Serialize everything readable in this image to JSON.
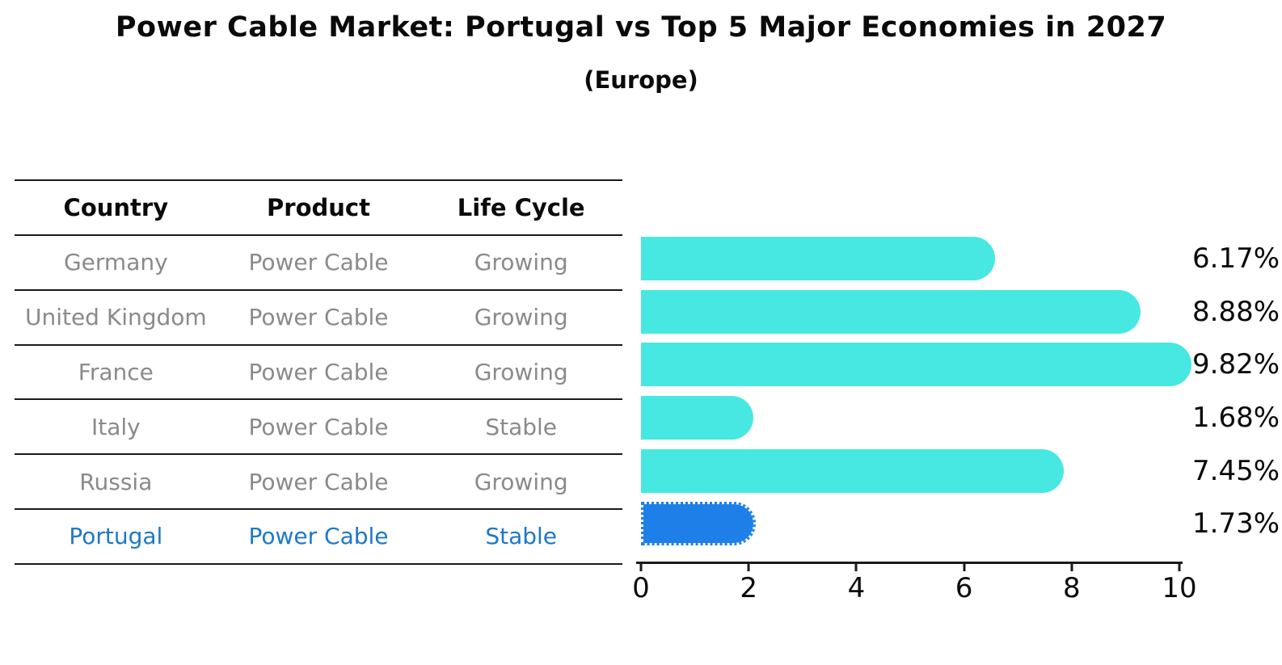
{
  "title": "Power Cable Market: Portugal vs Top 5 Major Economies in 2027",
  "subtitle": "(Europe)",
  "table": {
    "headers": [
      "Country",
      "Product",
      "Life Cycle"
    ],
    "rows": [
      {
        "country": "Germany",
        "product": "Power Cable",
        "life_cycle": "Growing",
        "highlighted": false
      },
      {
        "country": "United Kingdom",
        "product": "Power Cable",
        "life_cycle": "Growing",
        "highlighted": false
      },
      {
        "country": "France",
        "product": "Power Cable",
        "life_cycle": "Growing",
        "highlighted": false
      },
      {
        "country": "Italy",
        "product": "Power Cable",
        "life_cycle": "Stable",
        "highlighted": false
      },
      {
        "country": "Russia",
        "product": "Power Cable",
        "life_cycle": "Growing",
        "highlighted": false
      },
      {
        "country": "Portugal",
        "product": "Power Cable",
        "life_cycle": "Stable",
        "highlighted": true
      }
    ]
  },
  "chart_data": {
    "type": "bar",
    "orientation": "horizontal",
    "categories": [
      "Germany",
      "United Kingdom",
      "France",
      "Italy",
      "Russia",
      "Portugal"
    ],
    "values": [
      6.17,
      8.88,
      9.82,
      1.68,
      7.45,
      1.73
    ],
    "labels": [
      "6.17%",
      "8.88%",
      "9.82%",
      "1.68%",
      "7.45%",
      "1.73%"
    ],
    "xlim": [
      0,
      10
    ],
    "x_ticks": [
      0,
      2,
      4,
      6,
      8,
      10
    ],
    "grid": false,
    "legend": "none",
    "highlight_category": "Portugal",
    "bar_color": "#47e8e1",
    "highlight_color": "#1e7fe8",
    "highlight_text_color": "#1e78c8",
    "text_color": "#8a8a8a"
  }
}
